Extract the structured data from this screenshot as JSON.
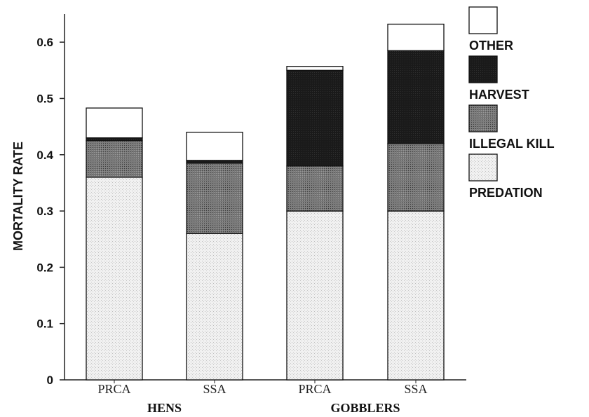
{
  "chart_data": {
    "type": "bar",
    "stacked": true,
    "ylabel": "MORTALITY RATE",
    "ylim": [
      0,
      0.65
    ],
    "yticks": [
      "0",
      "0.1",
      "0.2",
      "0.3",
      "0.4",
      "0.5",
      "0.6"
    ],
    "ytick_values": [
      0,
      0.1,
      0.2,
      0.3,
      0.4,
      0.5,
      0.6
    ],
    "categories": [
      "PRCA",
      "SSA",
      "PRCA",
      "SSA"
    ],
    "groups": [
      {
        "label": "HENS",
        "categories": [
          0,
          1
        ]
      },
      {
        "label": "GOBBLERS",
        "categories": [
          2,
          3
        ]
      }
    ],
    "series": [
      {
        "name": "PREDATION",
        "values": [
          0.36,
          0.26,
          0.3,
          0.3
        ],
        "color": "#ececec"
      },
      {
        "name": "ILLEGAL KILL",
        "values": [
          0.065,
          0.125,
          0.08,
          0.12
        ],
        "color": "#6f6f6f"
      },
      {
        "name": "HARVEST",
        "values": [
          0.005,
          0.005,
          0.17,
          0.165
        ],
        "color": "#161616"
      },
      {
        "name": "OTHER",
        "values": [
          0.053,
          0.05,
          0.007,
          0.047
        ],
        "color": "#ffffff"
      }
    ],
    "legend_order": [
      "OTHER",
      "HARVEST",
      "ILLEGAL KILL",
      "PREDATION"
    ],
    "legend_position": "right",
    "grid": false
  }
}
